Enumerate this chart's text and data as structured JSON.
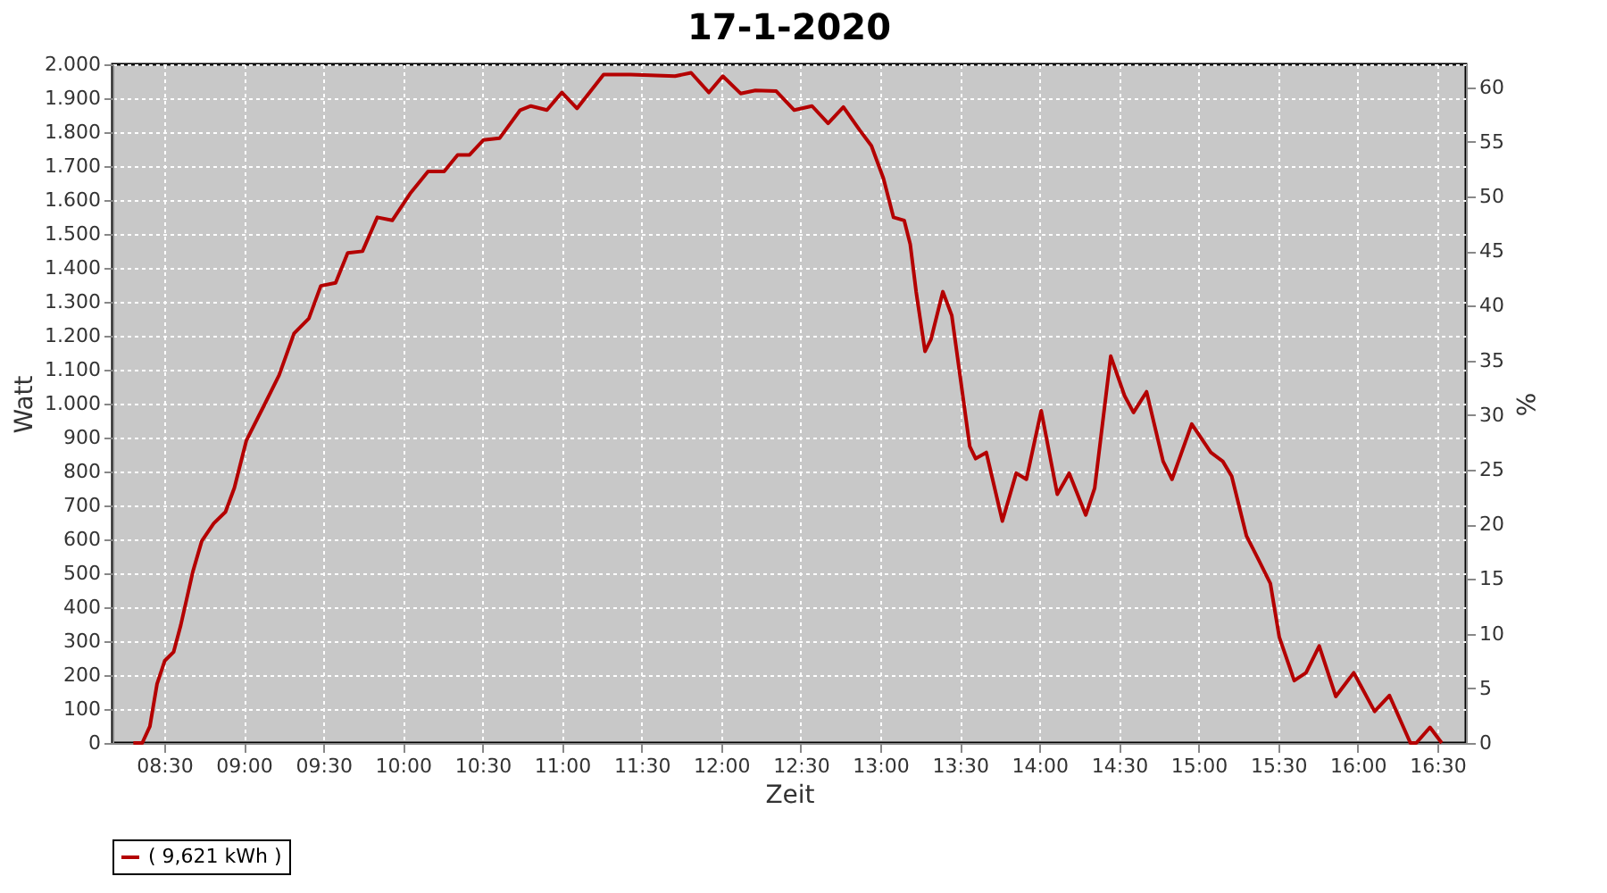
{
  "chart_data": {
    "type": "line",
    "title": "17-1-2020",
    "xlabel": "Zeit",
    "ylabel": "Watt",
    "y2label": "%",
    "series": [
      {
        "name": "( 9,621 kWh )",
        "color": "#b40000",
        "x": [
          8.306,
          8.362,
          8.41,
          8.455,
          8.503,
          8.559,
          8.604,
          8.68,
          8.736,
          8.811,
          8.885,
          8.941,
          9.016,
          9.129,
          9.222,
          9.316,
          9.409,
          9.484,
          9.577,
          9.653,
          9.746,
          9.839,
          9.933,
          10.045,
          10.158,
          10.259,
          10.344,
          10.419,
          10.506,
          10.607,
          10.737,
          10.804,
          10.905,
          10.999,
          11.094,
          11.261,
          11.429,
          11.71,
          11.811,
          11.923,
          12.01,
          12.122,
          12.215,
          12.346,
          12.459,
          12.571,
          12.672,
          12.768,
          12.869,
          12.944,
          13.02,
          13.083,
          13.15,
          13.188,
          13.225,
          13.281,
          13.318,
          13.393,
          13.449,
          13.562,
          13.599,
          13.666,
          13.767,
          13.854,
          13.918,
          14.011,
          14.112,
          14.187,
          14.291,
          14.347,
          14.448,
          14.535,
          14.591,
          14.673,
          14.777,
          14.833,
          14.957,
          15.077,
          15.152,
          15.208,
          15.301,
          15.377,
          15.451,
          15.507,
          15.601,
          15.675,
          15.758,
          15.862,
          15.975,
          16.106,
          16.199,
          16.331,
          16.368,
          16.454,
          16.528
        ],
        "values": [
          0,
          0,
          49,
          174,
          242,
          268,
          347,
          505,
          595,
          647,
          681,
          752,
          891,
          996,
          1084,
          1207,
          1251,
          1347,
          1356,
          1444,
          1449,
          1549,
          1540,
          1619,
          1684,
          1684,
          1733,
          1733,
          1777,
          1782,
          1865,
          1877,
          1865,
          1917,
          1870,
          1970,
          1970,
          1965,
          1975,
          1917,
          1965,
          1914,
          1923,
          1921,
          1865,
          1877,
          1826,
          1874,
          1807,
          1760,
          1663,
          1549,
          1540,
          1470,
          1330,
          1154,
          1189,
          1330,
          1260,
          874,
          838,
          856,
          654,
          795,
          777,
          979,
          733,
          795,
          672,
          751,
          1140,
          1023,
          974,
          1035,
          830,
          777,
          940,
          856,
          830,
          786,
          610,
          540,
          470,
          312,
          184,
          207,
          286,
          137,
          207,
          93,
          140,
          0,
          0,
          46,
          0
        ]
      }
    ],
    "xlim": [
      8.175,
      16.68
    ],
    "xticks": [
      {
        "value": 8.5,
        "label": "08:30"
      },
      {
        "value": 9,
        "label": "09:00"
      },
      {
        "value": 9.5,
        "label": "09:30"
      },
      {
        "value": 10,
        "label": "10:00"
      },
      {
        "value": 10.5,
        "label": "10:30"
      },
      {
        "value": 11,
        "label": "11:00"
      },
      {
        "value": 11.5,
        "label": "11:30"
      },
      {
        "value": 12,
        "label": "12:00"
      },
      {
        "value": 12.5,
        "label": "12:30"
      },
      {
        "value": 13,
        "label": "13:00"
      },
      {
        "value": 13.5,
        "label": "13:30"
      },
      {
        "value": 14,
        "label": "14:00"
      },
      {
        "value": 14.5,
        "label": "14:30"
      },
      {
        "value": 15,
        "label": "15:00"
      },
      {
        "value": 15.5,
        "label": "15:30"
      },
      {
        "value": 16,
        "label": "16:00"
      },
      {
        "value": 16.5,
        "label": "16:30"
      }
    ],
    "ylim": [
      0,
      2000
    ],
    "yticks": [
      0,
      100,
      200,
      300,
      400,
      500,
      600,
      700,
      800,
      900,
      {
        "value": 1000,
        "label": "1.000"
      },
      {
        "value": 1100,
        "label": "1.100"
      },
      {
        "value": 1200,
        "label": "1.200"
      },
      {
        "value": 1300,
        "label": "1.300"
      },
      {
        "value": 1400,
        "label": "1.400"
      },
      {
        "value": 1500,
        "label": "1.500"
      },
      {
        "value": 1600,
        "label": "1.600"
      },
      {
        "value": 1700,
        "label": "1.700"
      },
      {
        "value": 1800,
        "label": "1.800"
      },
      {
        "value": 1900,
        "label": "1.900"
      },
      {
        "value": 2000,
        "label": "2.000"
      }
    ],
    "y2lim": [
      0,
      62.1
    ],
    "y2ticks": [
      0,
      5,
      10,
      15,
      20,
      25,
      30,
      35,
      40,
      45,
      50,
      55,
      60
    ],
    "grid": true,
    "legend": "bottom",
    "marker": "none",
    "line_style": "solid"
  }
}
